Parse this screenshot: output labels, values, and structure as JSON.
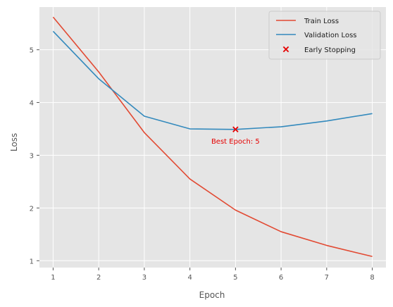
{
  "chart_data": {
    "type": "line",
    "title": "",
    "xlabel": "Epoch",
    "ylabel": "Loss",
    "x": [
      1,
      2,
      3,
      4,
      5,
      6,
      7,
      8
    ],
    "xticks": [
      1,
      2,
      3,
      4,
      5,
      6,
      7,
      8
    ],
    "yticks": [
      1,
      2,
      3,
      4,
      5
    ],
    "xlim": [
      0.7,
      8.3
    ],
    "ylim": [
      0.87,
      5.81
    ],
    "grid": true,
    "legend_position": "top-right",
    "series": [
      {
        "name": "Train Loss",
        "color": "#E24A33",
        "values": [
          5.62,
          4.58,
          3.43,
          2.55,
          1.96,
          1.55,
          1.29,
          1.08
        ]
      },
      {
        "name": "Validation Loss",
        "color": "#348ABD",
        "values": [
          5.35,
          4.45,
          3.74,
          3.5,
          3.49,
          3.54,
          3.65,
          3.79
        ]
      }
    ],
    "markers": [
      {
        "name": "Early Stopping",
        "x": 5,
        "y": 3.49,
        "symbol": "x",
        "color": "#E50000"
      }
    ],
    "annotations": [
      {
        "text": "Best Epoch: 5",
        "x": 5,
        "y": 3.27,
        "color": "#E50000"
      }
    ]
  }
}
